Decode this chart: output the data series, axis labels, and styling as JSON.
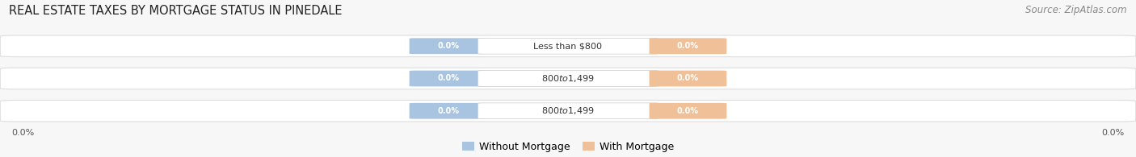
{
  "title": "REAL ESTATE TAXES BY MORTGAGE STATUS IN PINEDALE",
  "source_text": "Source: ZipAtlas.com",
  "categories": [
    "Less than $800",
    "$800 to $1,499",
    "$800 to $1,499"
  ],
  "without_mortgage": [
    0.0,
    0.0,
    0.0
  ],
  "with_mortgage": [
    0.0,
    0.0,
    0.0
  ],
  "bar_color_without": "#a8c4e0",
  "bar_color_with": "#f0c098",
  "bg_color": "#f7f7f7",
  "bar_bg_color": "#efefef",
  "axis_label_left": "0.0%",
  "axis_label_right": "0.0%",
  "legend_without": "Without Mortgage",
  "legend_with": "With Mortgage",
  "title_fontsize": 10.5,
  "source_fontsize": 8.5,
  "figsize": [
    14.06,
    1.95
  ],
  "dpi": 100
}
